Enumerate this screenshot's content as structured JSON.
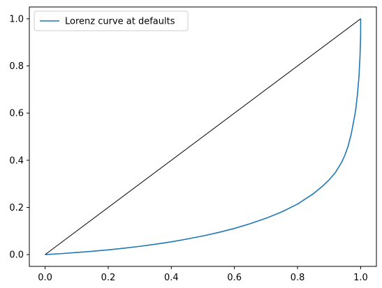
{
  "chart_data": {
    "type": "line",
    "title": "",
    "xlabel": "",
    "ylabel": "",
    "xlim": [
      -0.05,
      1.05
    ],
    "ylim": [
      -0.05,
      1.05
    ],
    "grid": false,
    "legend_position": "top-left",
    "x_ticks": [
      {
        "value": 0.0,
        "label": "0.0"
      },
      {
        "value": 0.2,
        "label": "0.2"
      },
      {
        "value": 0.4,
        "label": "0.4"
      },
      {
        "value": 0.6,
        "label": "0.6"
      },
      {
        "value": 0.8,
        "label": "0.8"
      },
      {
        "value": 1.0,
        "label": "1.0"
      }
    ],
    "y_ticks": [
      {
        "value": 0.0,
        "label": "0.0"
      },
      {
        "value": 0.2,
        "label": "0.2"
      },
      {
        "value": 0.4,
        "label": "0.4"
      },
      {
        "value": 0.6,
        "label": "0.6"
      },
      {
        "value": 0.8,
        "label": "0.8"
      },
      {
        "value": 1.0,
        "label": "1.0"
      }
    ],
    "series": [
      {
        "name": "Lorenz curve at defaults",
        "color": "#1f77b4",
        "in_legend": true,
        "x": [
          0.0,
          0.05,
          0.1,
          0.15,
          0.2,
          0.25,
          0.3,
          0.35,
          0.4,
          0.45,
          0.5,
          0.55,
          0.6,
          0.65,
          0.7,
          0.75,
          0.8,
          0.85,
          0.88,
          0.9,
          0.92,
          0.94,
          0.95,
          0.96,
          0.97,
          0.98,
          0.985,
          0.99,
          0.995,
          0.998,
          1.0,
          1.0
        ],
        "y": [
          0.0,
          0.004,
          0.009,
          0.014,
          0.02,
          0.027,
          0.035,
          0.044,
          0.054,
          0.066,
          0.079,
          0.094,
          0.111,
          0.131,
          0.154,
          0.181,
          0.214,
          0.258,
          0.291,
          0.317,
          0.348,
          0.392,
          0.421,
          0.459,
          0.51,
          0.58,
          0.62,
          0.68,
          0.76,
          0.84,
          0.93,
          1.0
        ]
      },
      {
        "name": "",
        "color": "#000000",
        "in_legend": false,
        "x": [
          0.0,
          1.0
        ],
        "y": [
          0.0,
          1.0
        ]
      }
    ]
  }
}
